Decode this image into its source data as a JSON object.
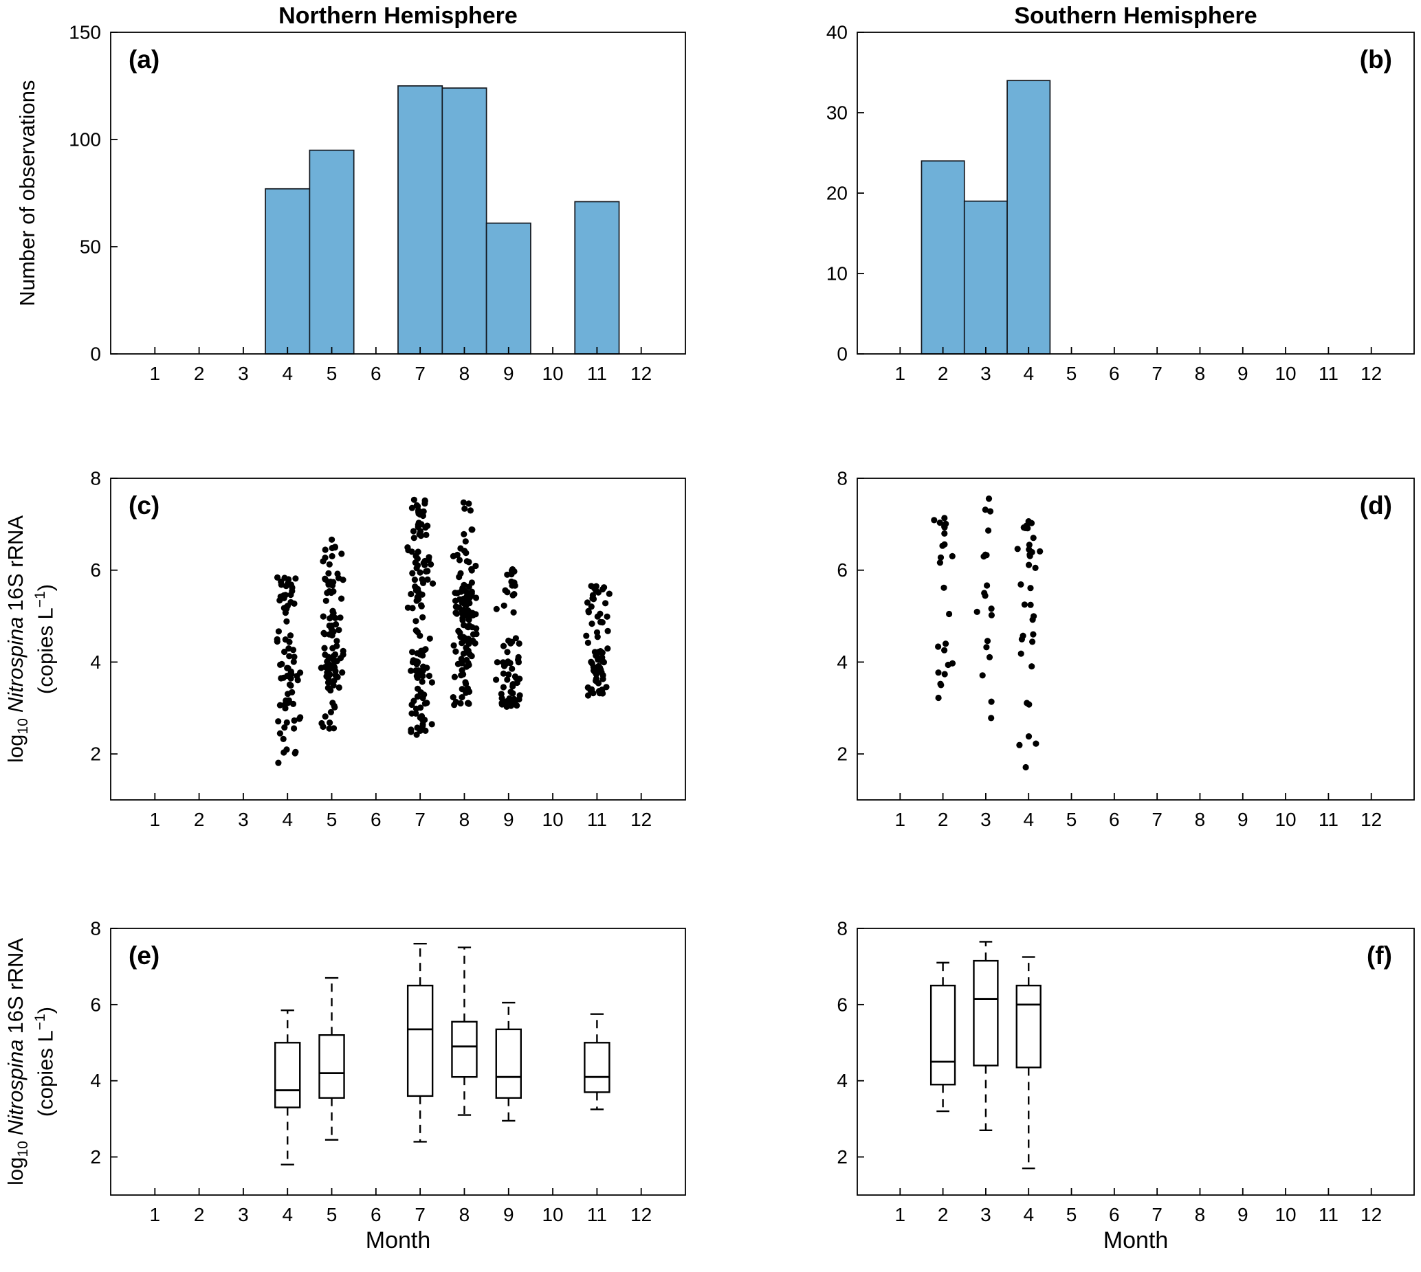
{
  "figure": {
    "columns": [
      {
        "title": "Northern Hemisphere"
      },
      {
        "title": "Southern Hemisphere"
      }
    ],
    "xlabel": "Month",
    "ylabel_observations": "Number of observations",
    "ylabel_rrna": {
      "log": "log",
      "base": "10",
      "taxon": "Nitrospina",
      "rest": "16S rRNA",
      "copies_pre": "(copies L",
      "exp": "−1",
      "copies_post": ")"
    }
  },
  "style": {
    "background": "#FFFFFF",
    "bar_fill": "#6FB0D8",
    "bar_edge": "#13181F",
    "marker_color": "#000000",
    "line_color": "#000000"
  },
  "chart_data": [
    {
      "id": "a",
      "panel_label": "(a)",
      "type": "bar",
      "hemisphere": "Northern",
      "title": "Northern Hemisphere",
      "ylabel": "Number of observations",
      "xlim": [
        0,
        13
      ],
      "x_ticks": [
        1,
        2,
        3,
        4,
        5,
        6,
        7,
        8,
        9,
        10,
        11,
        12
      ],
      "ylim": [
        0,
        150
      ],
      "y_ticks": [
        0,
        50,
        100,
        150
      ],
      "bars": [
        {
          "month": 4,
          "count": 77
        },
        {
          "month": 5,
          "count": 95
        },
        {
          "month": 7,
          "count": 125
        },
        {
          "month": 8,
          "count": 124
        },
        {
          "month": 9,
          "count": 61
        },
        {
          "month": 11,
          "count": 71
        }
      ]
    },
    {
      "id": "b",
      "panel_label": "(b)",
      "type": "bar",
      "hemisphere": "Southern",
      "title": "Southern Hemisphere",
      "xlim": [
        0,
        13
      ],
      "x_ticks": [
        1,
        2,
        3,
        4,
        5,
        6,
        7,
        8,
        9,
        10,
        11,
        12
      ],
      "ylim": [
        0,
        40
      ],
      "y_ticks": [
        0,
        10,
        20,
        30,
        40
      ],
      "bars": [
        {
          "month": 2,
          "count": 24
        },
        {
          "month": 3,
          "count": 19
        },
        {
          "month": 4,
          "count": 34
        }
      ]
    },
    {
      "id": "c",
      "panel_label": "(c)",
      "type": "scatter",
      "hemisphere": "Northern",
      "ylabel": "log10 Nitrospina 16S rRNA (copies L-1)",
      "xlim": [
        0,
        13
      ],
      "x_ticks": [
        1,
        2,
        3,
        4,
        5,
        6,
        7,
        8,
        9,
        10,
        11,
        12
      ],
      "ylim": [
        1,
        8
      ],
      "y_ticks": [
        2,
        4,
        6,
        8
      ],
      "clusters": [
        {
          "month": 4,
          "n": 77,
          "min": 1.8,
          "q1": 3.3,
          "median": 3.75,
          "q3": 5.0,
          "max": 5.9
        },
        {
          "month": 5,
          "n": 95,
          "min": 2.45,
          "q1": 3.55,
          "median": 4.2,
          "q3": 5.2,
          "max": 6.7
        },
        {
          "month": 7,
          "n": 125,
          "min": 2.4,
          "q1": 3.6,
          "median": 5.35,
          "q3": 6.5,
          "max": 7.6
        },
        {
          "month": 8,
          "n": 124,
          "min": 3.05,
          "q1": 4.1,
          "median": 4.9,
          "q3": 5.55,
          "max": 7.5
        },
        {
          "month": 9,
          "n": 61,
          "min": 2.95,
          "q1": 3.55,
          "median": 4.1,
          "q3": 5.35,
          "max": 6.1
        },
        {
          "month": 11,
          "n": 71,
          "min": 3.25,
          "q1": 3.7,
          "median": 4.1,
          "q3": 5.0,
          "max": 5.75
        }
      ]
    },
    {
      "id": "d",
      "panel_label": "(d)",
      "type": "scatter",
      "hemisphere": "Southern",
      "xlim": [
        0,
        13
      ],
      "x_ticks": [
        1,
        2,
        3,
        4,
        5,
        6,
        7,
        8,
        9,
        10,
        11,
        12
      ],
      "ylim": [
        1,
        8
      ],
      "y_ticks": [
        2,
        4,
        6,
        8
      ],
      "clusters": [
        {
          "month": 2,
          "n": 24,
          "min": 3.2,
          "q1": 3.9,
          "median": 4.5,
          "q3": 6.5,
          "max": 7.2
        },
        {
          "month": 3,
          "n": 19,
          "min": 2.7,
          "q1": 4.4,
          "median": 6.15,
          "q3": 7.15,
          "max": 7.65
        },
        {
          "month": 4,
          "n": 34,
          "min": 1.7,
          "q1": 4.35,
          "median": 6.0,
          "q3": 6.5,
          "max": 7.3
        }
      ]
    },
    {
      "id": "e",
      "panel_label": "(e)",
      "type": "box",
      "hemisphere": "Northern",
      "xlabel": "Month",
      "ylabel": "log10 Nitrospina 16S rRNA (copies L-1)",
      "xlim": [
        0,
        13
      ],
      "x_ticks": [
        1,
        2,
        3,
        4,
        5,
        6,
        7,
        8,
        9,
        10,
        11,
        12
      ],
      "ylim": [
        1,
        8
      ],
      "y_ticks": [
        2,
        4,
        6,
        8
      ],
      "boxes": [
        {
          "month": 4,
          "whisker_low": 1.8,
          "q1": 3.3,
          "median": 3.75,
          "q3": 5.0,
          "whisker_high": 5.85
        },
        {
          "month": 5,
          "whisker_low": 2.45,
          "q1": 3.55,
          "median": 4.2,
          "q3": 5.2,
          "whisker_high": 6.7
        },
        {
          "month": 7,
          "whisker_low": 2.4,
          "q1": 3.6,
          "median": 5.35,
          "q3": 6.5,
          "whisker_high": 7.6
        },
        {
          "month": 8,
          "whisker_low": 3.1,
          "q1": 4.1,
          "median": 4.9,
          "q3": 5.55,
          "whisker_high": 7.5
        },
        {
          "month": 9,
          "whisker_low": 2.95,
          "q1": 3.55,
          "median": 4.1,
          "q3": 5.35,
          "whisker_high": 6.05
        },
        {
          "month": 11,
          "whisker_low": 3.25,
          "q1": 3.7,
          "median": 4.1,
          "q3": 5.0,
          "whisker_high": 5.75
        }
      ]
    },
    {
      "id": "f",
      "panel_label": "(f)",
      "type": "box",
      "hemisphere": "Southern",
      "xlabel": "Month",
      "xlim": [
        0,
        13
      ],
      "x_ticks": [
        1,
        2,
        3,
        4,
        5,
        6,
        7,
        8,
        9,
        10,
        11,
        12
      ],
      "ylim": [
        1,
        8
      ],
      "y_ticks": [
        2,
        4,
        6,
        8
      ],
      "boxes": [
        {
          "month": 2,
          "whisker_low": 3.2,
          "q1": 3.9,
          "median": 4.5,
          "q3": 6.5,
          "whisker_high": 7.1
        },
        {
          "month": 3,
          "whisker_low": 2.7,
          "q1": 4.4,
          "median": 6.15,
          "q3": 7.15,
          "whisker_high": 7.65
        },
        {
          "month": 4,
          "whisker_low": 1.7,
          "q1": 4.35,
          "median": 6.0,
          "q3": 6.5,
          "whisker_high": 7.25
        }
      ]
    }
  ]
}
